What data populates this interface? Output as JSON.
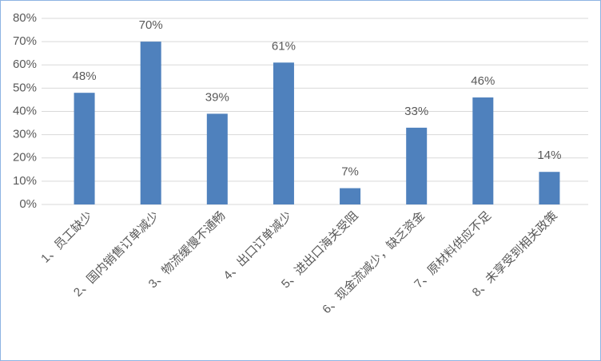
{
  "chart_data": {
    "type": "bar",
    "categories": [
      "1、员工缺少",
      "2、国内销售订单减少",
      "3、物流缓慢不通畅",
      "4、出口订单减少",
      "5、进出口海关受阻",
      "6、现金流减少，缺乏资金",
      "7、原材料供应不足",
      "8、未享受到相关政策"
    ],
    "values": [
      48,
      70,
      39,
      61,
      7,
      33,
      46,
      14
    ],
    "value_labels": [
      "48%",
      "70%",
      "39%",
      "61%",
      "7%",
      "33%",
      "46%",
      "14%"
    ],
    "color": "#4f81bd",
    "ylim": [
      0,
      80
    ],
    "yticks": [
      {
        "value": 0,
        "label": "0%"
      },
      {
        "value": 10,
        "label": "10%"
      },
      {
        "value": 20,
        "label": "20%"
      },
      {
        "value": 30,
        "label": "30%"
      },
      {
        "value": 40,
        "label": "40%"
      },
      {
        "value": 50,
        "label": "50%"
      },
      {
        "value": 60,
        "label": "60%"
      },
      {
        "value": 70,
        "label": "70%"
      },
      {
        "value": 80,
        "label": "80%"
      }
    ],
    "grid": true
  }
}
